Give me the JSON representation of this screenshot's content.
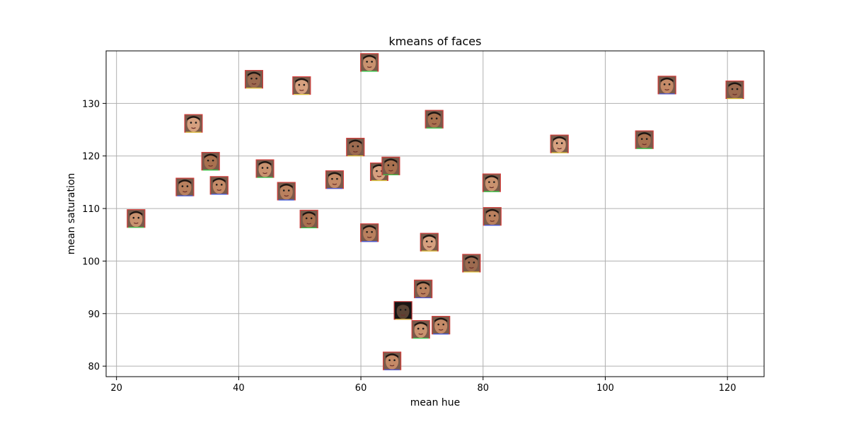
{
  "chart_data": {
    "type": "scatter",
    "title": "kmeans of faces",
    "xlabel": "mean hue",
    "ylabel": "mean saturation",
    "xlim": [
      18.3,
      126.0
    ],
    "ylim": [
      78.0,
      140.0
    ],
    "xticks": [
      20,
      40,
      60,
      80,
      100,
      120
    ],
    "yticks": [
      80,
      90,
      100,
      110,
      120,
      130
    ],
    "grid": true,
    "marker": "face-thumbnail",
    "points": [
      {
        "x": 23.2,
        "y": 108.1
      },
      {
        "x": 31.2,
        "y": 114.1
      },
      {
        "x": 32.6,
        "y": 126.2
      },
      {
        "x": 35.4,
        "y": 119.0
      },
      {
        "x": 36.8,
        "y": 114.4
      },
      {
        "x": 42.5,
        "y": 134.6
      },
      {
        "x": 44.3,
        "y": 117.6
      },
      {
        "x": 47.8,
        "y": 113.3
      },
      {
        "x": 50.3,
        "y": 133.4
      },
      {
        "x": 51.5,
        "y": 108.0
      },
      {
        "x": 55.7,
        "y": 115.5
      },
      {
        "x": 59.1,
        "y": 121.7
      },
      {
        "x": 61.4,
        "y": 137.8
      },
      {
        "x": 61.4,
        "y": 105.4
      },
      {
        "x": 63.0,
        "y": 117.0
      },
      {
        "x": 64.9,
        "y": 118.1
      },
      {
        "x": 65.1,
        "y": 81.0
      },
      {
        "x": 66.9,
        "y": 90.6
      },
      {
        "x": 69.8,
        "y": 87.0
      },
      {
        "x": 70.2,
        "y": 94.7
      },
      {
        "x": 71.2,
        "y": 103.6
      },
      {
        "x": 72.0,
        "y": 127.0
      },
      {
        "x": 73.1,
        "y": 87.8
      },
      {
        "x": 78.1,
        "y": 99.6
      },
      {
        "x": 81.4,
        "y": 114.9
      },
      {
        "x": 81.5,
        "y": 108.5
      },
      {
        "x": 92.5,
        "y": 122.3
      },
      {
        "x": 106.4,
        "y": 123.1
      },
      {
        "x": 110.1,
        "y": 133.5
      },
      {
        "x": 121.2,
        "y": 132.6
      }
    ],
    "thumbnail_palette": [
      "#c9926f",
      "#b9805e",
      "#d6a07f",
      "#a9714f",
      "#c48a67",
      "#9c6a4f"
    ],
    "frame_colors": [
      "#e23b3b",
      "#2fd14b",
      "#3b5be2",
      "#e0c63b"
    ]
  }
}
